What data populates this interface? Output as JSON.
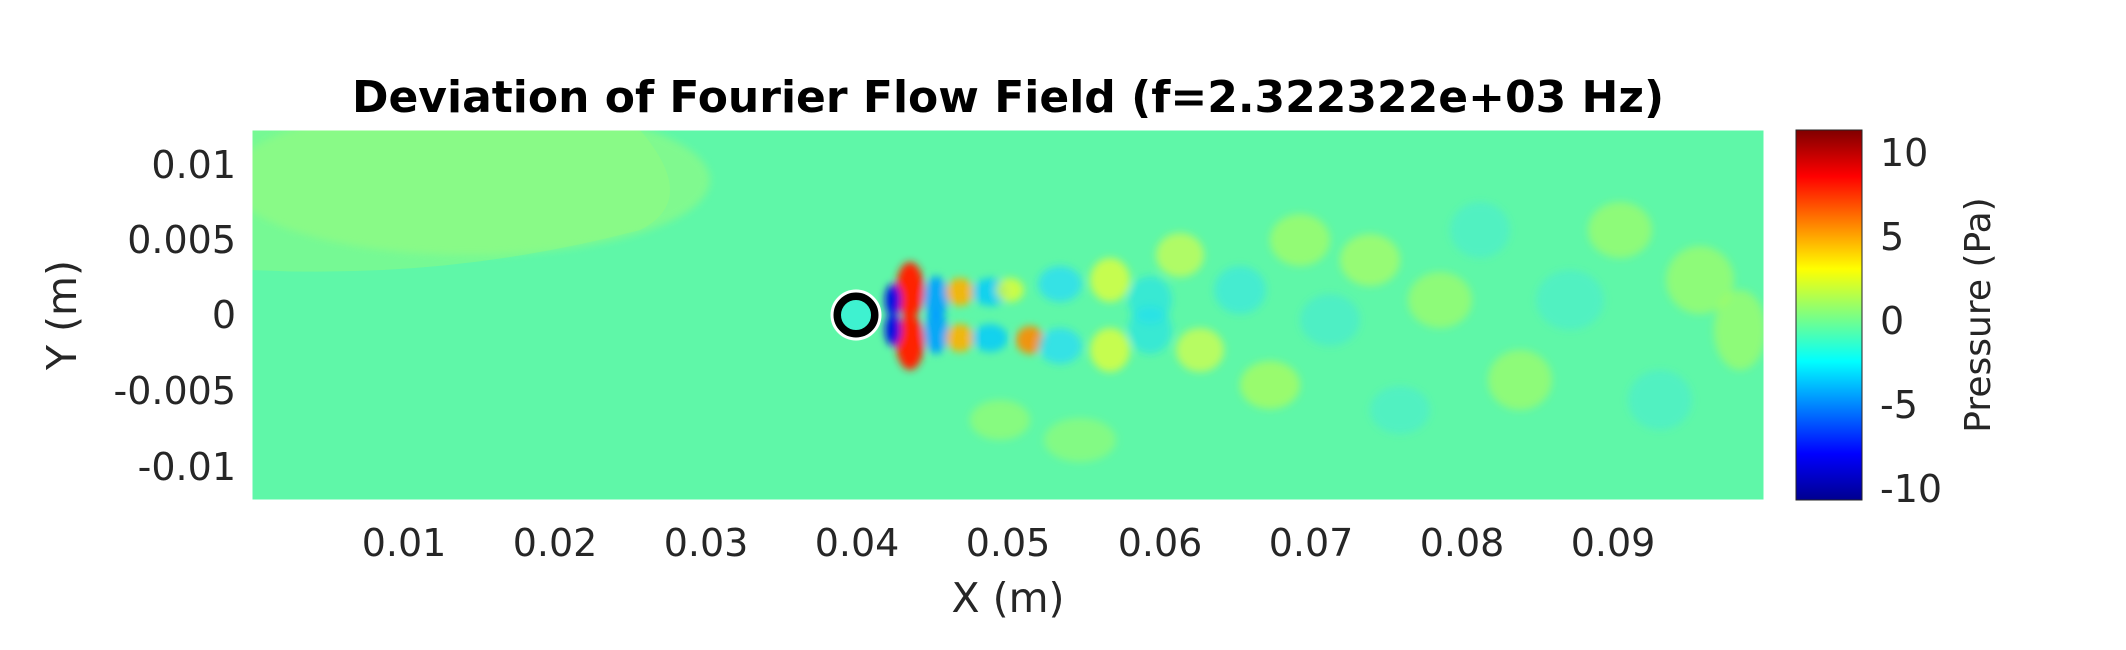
{
  "chart_data": {
    "type": "heatmap",
    "title": "Deviation of Fourier Flow Field (f=2.322322e+03 Hz)",
    "xlabel": "X (m)",
    "ylabel": "Y (m)",
    "xlim": [
      0,
      0.1
    ],
    "ylim": [
      -0.0123,
      0.0123
    ],
    "xticks": [
      0.01,
      0.02,
      0.03,
      0.04,
      0.05,
      0.06,
      0.07,
      0.08,
      0.09
    ],
    "xtick_labels": [
      "0.01",
      "0.02",
      "0.03",
      "0.04",
      "0.05",
      "0.06",
      "0.07",
      "0.08",
      "0.09"
    ],
    "yticks": [
      0.01,
      0.005,
      0,
      -0.005,
      -0.01
    ],
    "ytick_labels": [
      "0.01",
      "0.005",
      "0",
      "-0.005",
      "-0.01"
    ],
    "colorbar": {
      "label": "Pressure (Pa)",
      "range": [
        -11,
        11
      ],
      "ticks": [
        10,
        5,
        0,
        -5,
        -10
      ],
      "tick_labels": [
        "10",
        "5",
        "0",
        "-5",
        "-10"
      ],
      "colormap": "jet"
    },
    "cylinder": {
      "x": 0.04,
      "y": 0
    },
    "grid": false,
    "legend": "none"
  }
}
